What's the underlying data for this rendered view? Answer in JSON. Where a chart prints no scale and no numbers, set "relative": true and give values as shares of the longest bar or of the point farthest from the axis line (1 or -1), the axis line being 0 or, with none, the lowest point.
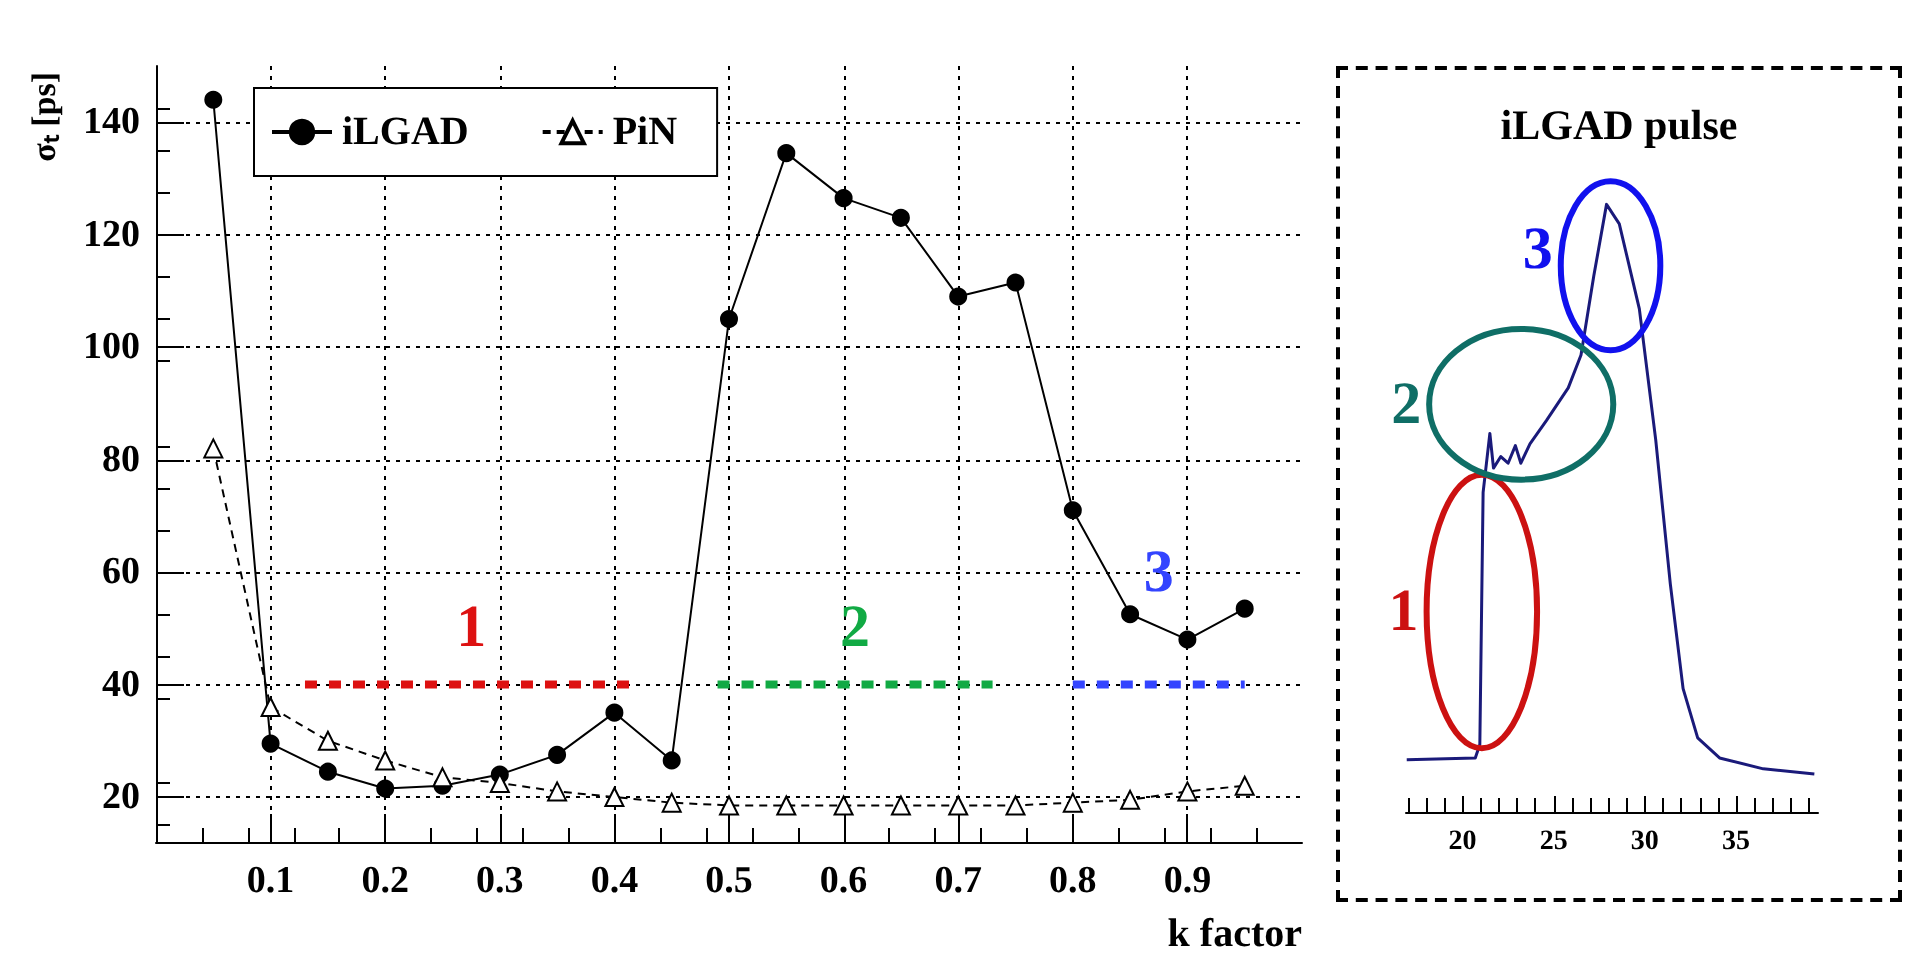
{
  "chart_data": [
    {
      "type": "line",
      "xlabel": "k factor",
      "ylabel": "σₜ [ps]",
      "xlim": [
        0,
        1
      ],
      "ylim": [
        12,
        150
      ],
      "xticks": [
        0.1,
        0.2,
        0.3,
        0.4,
        0.5,
        0.6,
        0.7,
        0.8,
        0.9
      ],
      "yticks": [
        20,
        40,
        60,
        80,
        100,
        120,
        140
      ],
      "grid": true,
      "legend": "top left",
      "x": [
        0.05,
        0.1,
        0.15,
        0.2,
        0.25,
        0.3,
        0.35,
        0.4,
        0.45,
        0.5,
        0.55,
        0.6,
        0.65,
        0.7,
        0.75,
        0.8,
        0.85,
        0.9,
        0.95
      ],
      "series": [
        {
          "name": "iLGAD",
          "color": "#000000",
          "marker": "circle",
          "line_style": "solid",
          "values": [
            144,
            29.5,
            24.5,
            21.5,
            22,
            24,
            27.5,
            35,
            26.5,
            105,
            134.5,
            126.5,
            123,
            109,
            111.5,
            71,
            52.5,
            48,
            53.5
          ]
        },
        {
          "name": "PiN",
          "color": "#000000",
          "marker": "triangle",
          "line_style": "dashed",
          "values": [
            82,
            36,
            30,
            26.5,
            23.5,
            22.5,
            21,
            20,
            19,
            18.5,
            18.5,
            18.5,
            18.5,
            18.5,
            18.5,
            19,
            19.5,
            21,
            22
          ]
        },
        {
          "name": "1",
          "color": "#dd1111",
          "marker": "none",
          "line_style": "dotted",
          "x": [
            0.13,
            0.42
          ],
          "values": [
            40,
            40
          ]
        },
        {
          "name": "2",
          "color": "#11aa44",
          "marker": "none",
          "line_style": "dotted",
          "x": [
            0.49,
            0.73
          ],
          "values": [
            40,
            40
          ]
        },
        {
          "name": "3",
          "color": "#3344ff",
          "marker": "none",
          "line_style": "dotted",
          "x": [
            0.8,
            0.95
          ],
          "values": [
            40,
            40
          ]
        }
      ]
    },
    {
      "type": "line",
      "title": "iLGAD pulse",
      "relative": true,
      "xlim": [
        16.9,
        39.5
      ],
      "xticks": [
        20,
        25,
        30,
        35
      ],
      "grid": "y",
      "tick_labels": "x",
      "marker": "none",
      "annotations": [
        {
          "text": "1",
          "x": 21.06,
          "y": 0.33
        },
        {
          "text": "2",
          "x": 23.2,
          "y": 0.574
        },
        {
          "text": "3",
          "x": 27.9,
          "y": 1.0
        }
      ],
      "x": [
        16.94,
        20.7,
        20.95,
        21.13,
        21.5,
        21.7,
        22.1,
        22.5,
        22.9,
        23.2,
        23.7,
        24.6,
        25.8,
        26.5,
        27.2,
        27.9,
        28.6,
        29.7,
        30.6,
        31.4,
        32.1,
        32.9,
        34.1,
        36.5,
        39.3
      ],
      "series": [
        {
          "color": "#1a1a7a",
          "values": [
            0.086,
            0.089,
            0.111,
            0.526,
            0.623,
            0.566,
            0.585,
            0.574,
            0.603,
            0.574,
            0.606,
            0.644,
            0.698,
            0.752,
            0.882,
            1.0,
            0.968,
            0.828,
            0.612,
            0.375,
            0.203,
            0.122,
            0.089,
            0.071,
            0.0625
          ]
        }
      ]
    }
  ]
}
